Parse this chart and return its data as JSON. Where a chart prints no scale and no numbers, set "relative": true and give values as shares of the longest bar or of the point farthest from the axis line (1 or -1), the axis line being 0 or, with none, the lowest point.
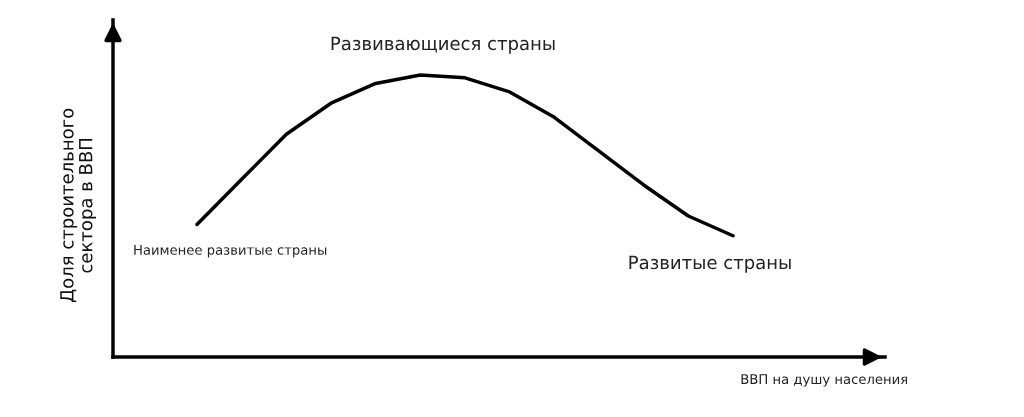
{
  "chart_data": {
    "type": "line",
    "relative": true,
    "categories": [
      null,
      null,
      null,
      null,
      null,
      null,
      null,
      null,
      null,
      null,
      null,
      null,
      null
    ],
    "series": [
      {
        "color": "#000000",
        "values": [
          0.47,
          0.63,
          0.79,
          0.9,
          0.97,
          1.0,
          0.99,
          0.94,
          0.85,
          0.73,
          0.61,
          0.5,
          0.43
        ]
      }
    ],
    "xlabel": "ВВП на душу населения",
    "ylabel": "Доля строительного\nсектора в ВВП",
    "annotations": [
      "Развивающиеся страны",
      "Наименее развитые страны",
      "Развитые страны"
    ],
    "legend": false,
    "marker": "none",
    "line_style": "solid"
  }
}
